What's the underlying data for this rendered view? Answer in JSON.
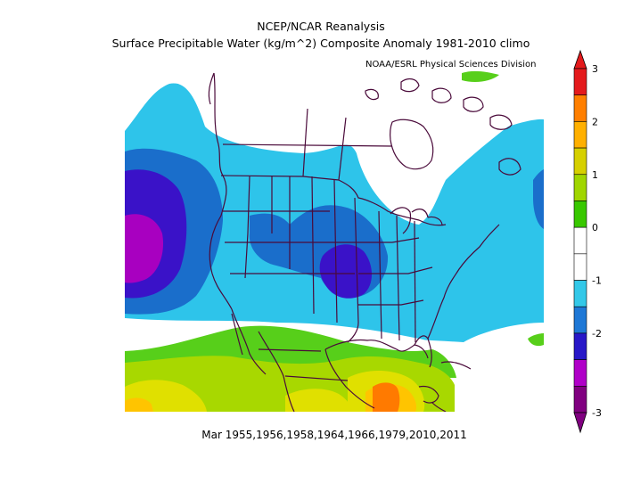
{
  "title_line1": "NCEP/NCAR Reanalysis",
  "title_line2": "Surface Precipitable Water (kg/m^2) Composite Anomaly 1981-2010 climo",
  "credit": "NOAA/ESRL Physical Sciences Division",
  "footer": "Mar 1955,1956,1958,1964,1966,1979,2010,2011",
  "colorbar": {
    "ticks": [
      "3",
      "2",
      "1",
      "0",
      "-1",
      "-2",
      "-3"
    ],
    "colors_top_to_bottom": [
      "#e41a1c",
      "#ff7f00",
      "#ffb000",
      "#d6d000",
      "#a0d600",
      "#38c800",
      "#ffffff",
      "#ffffff",
      "#33c8e8",
      "#1e78d6",
      "#2818c8",
      "#b000c8",
      "#800080"
    ]
  },
  "map_colors": {
    "anomaly_m3": "#800080",
    "anomaly_m2": "#a800c0",
    "anomaly_m1_5": "#3a12c8",
    "anomaly_m1": "#1a6ecb",
    "anomaly_m0_5": "#2ec4ea",
    "neutral": "#ffffff",
    "anomaly_p0_5": "#57cf1a",
    "anomaly_p1": "#a8d800",
    "anomaly_p1_5": "#e0e000",
    "anomaly_p2": "#ffc400",
    "anomaly_p2_5": "#ff7a00",
    "boundary": "#4a0a3a"
  }
}
